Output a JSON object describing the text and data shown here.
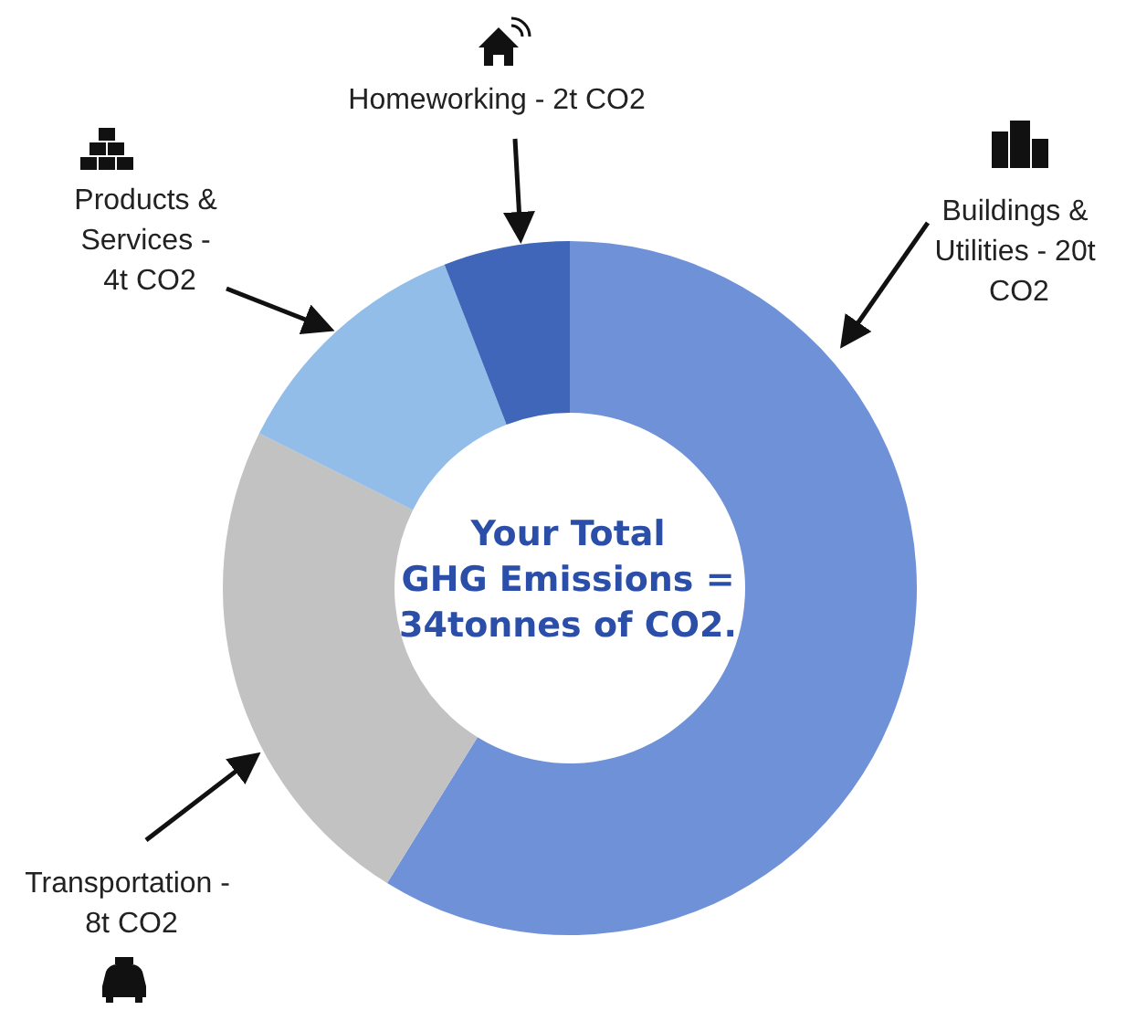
{
  "chart_data": {
    "type": "donut",
    "title": "Your Total\nGHG Emissions =\n34tonnes of CO2.",
    "categories": [
      "Buildings & Utilities - 20t CO2",
      "Transportation - 8t CO2",
      "Products & Services - 4t CO2",
      "Homeworking - 2t CO2"
    ],
    "values": [
      20,
      8,
      4,
      2
    ],
    "colors": [
      "#6f91d8",
      "#c2c2c2",
      "#92bde8",
      "#3f66b9"
    ],
    "legend": false
  }
}
